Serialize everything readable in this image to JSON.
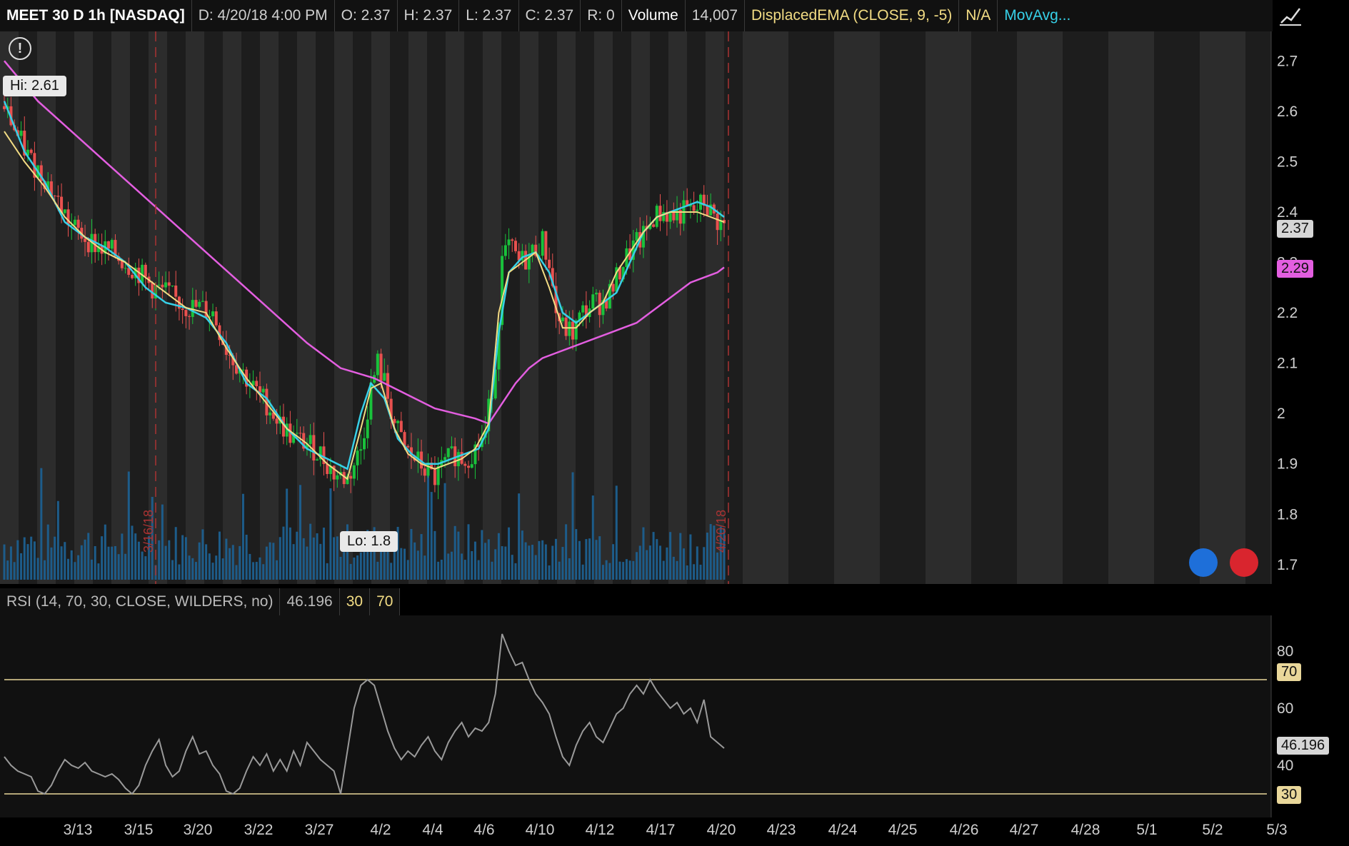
{
  "header": {
    "symbol": "MEET 30 D 1h [NASDAQ]",
    "date": "D:  4/20/18 4:00 PM",
    "open": "O:  2.37",
    "high": "H:  2.37",
    "low": "L:  2.37",
    "close": "C:  2.37",
    "range": "R:  0",
    "volume_label": "Volume",
    "volume_value": "14,007",
    "ema_label": "DisplacedEMA (CLOSE, 9, -5)",
    "ema_value": "N/A",
    "movavg_label": "MovAvg..."
  },
  "price_panel": {
    "hi_label": "Hi: 2.61",
    "lo_label": "Lo: 1.8",
    "last_price": "2.37",
    "movavg_price": "2.29",
    "date_marker_1": "3/16/18",
    "date_marker_2": "4/20/18",
    "yticks": [
      "2.7",
      "2.6",
      "2.5",
      "2.4",
      "2.3",
      "2.2",
      "2.1",
      "2",
      "1.9",
      "1.8",
      "1.7"
    ]
  },
  "rsi_panel": {
    "label": "RSI (14, 70, 30, CLOSE, WILDERS, no)",
    "value": "46.196",
    "oversold": "30",
    "overbought": "70",
    "yticks": [
      "80",
      "60",
      "40"
    ]
  },
  "xaxis": {
    "labels": [
      "3/13",
      "3/15",
      "3/20",
      "3/22",
      "3/27",
      "4/2",
      "4/4",
      "4/6",
      "4/10",
      "4/12",
      "4/17",
      "4/20",
      "4/23",
      "4/24",
      "4/25",
      "4/26",
      "4/27",
      "4/28",
      "5/1",
      "5/2",
      "5/3"
    ]
  },
  "colors": {
    "up": "#19c23b",
    "down": "#e8514f",
    "ema_fast": "#f2dc84",
    "ema_mid": "#37d0e8",
    "movavg": "#e35ee0",
    "rsi": "#9a9a9a",
    "volume": "#1d5c8a"
  },
  "chart_data": {
    "type": "candlestick",
    "ylim": [
      1.67,
      2.75
    ],
    "rsi_ylim": [
      25,
      90
    ],
    "price_path": [
      [
        0,
        2.61
      ],
      [
        4,
        2.55
      ],
      [
        8,
        2.5
      ],
      [
        12,
        2.47
      ],
      [
        16,
        2.42
      ],
      [
        20,
        2.37
      ],
      [
        24,
        2.35
      ],
      [
        28,
        2.33
      ],
      [
        32,
        2.32
      ],
      [
        36,
        2.3
      ],
      [
        40,
        2.28
      ],
      [
        44,
        2.25
      ],
      [
        48,
        2.24
      ],
      [
        52,
        2.22
      ],
      [
        55,
        2.21
      ],
      [
        58,
        2.21
      ],
      [
        62,
        2.2
      ],
      [
        66,
        2.13
      ],
      [
        70,
        2.09
      ],
      [
        74,
        2.05
      ],
      [
        78,
        2.02
      ],
      [
        82,
        1.98
      ],
      [
        86,
        1.95
      ],
      [
        90,
        1.94
      ],
      [
        94,
        1.92
      ],
      [
        98,
        1.88
      ],
      [
        102,
        1.87
      ],
      [
        106,
        1.93
      ],
      [
        109,
        2.05
      ],
      [
        111,
        2.1
      ],
      [
        113,
        2.06
      ],
      [
        116,
        1.98
      ],
      [
        119,
        1.93
      ],
      [
        122,
        1.91
      ],
      [
        125,
        1.89
      ],
      [
        128,
        1.87
      ],
      [
        131,
        1.9
      ],
      [
        134,
        1.92
      ],
      [
        137,
        1.91
      ],
      [
        140,
        1.93
      ],
      [
        143,
        1.96
      ],
      [
        146,
        2.1
      ],
      [
        148,
        2.3
      ],
      [
        150,
        2.33
      ],
      [
        153,
        2.3
      ],
      [
        156,
        2.31
      ],
      [
        158,
        2.33
      ],
      [
        160,
        2.34
      ],
      [
        162,
        2.3
      ],
      [
        164,
        2.2
      ],
      [
        166,
        2.17
      ],
      [
        169,
        2.16
      ],
      [
        172,
        2.2
      ],
      [
        175,
        2.22
      ],
      [
        178,
        2.22
      ],
      [
        181,
        2.25
      ],
      [
        184,
        2.3
      ],
      [
        187,
        2.33
      ],
      [
        190,
        2.35
      ],
      [
        193,
        2.39
      ],
      [
        196,
        2.4
      ],
      [
        199,
        2.39
      ],
      [
        202,
        2.4
      ],
      [
        205,
        2.4
      ],
      [
        208,
        2.42
      ],
      [
        211,
        2.39
      ],
      [
        214,
        2.37
      ]
    ],
    "ema_fast_path": [
      [
        0,
        2.56
      ],
      [
        6,
        2.5
      ],
      [
        12,
        2.45
      ],
      [
        18,
        2.39
      ],
      [
        24,
        2.35
      ],
      [
        30,
        2.32
      ],
      [
        36,
        2.3
      ],
      [
        42,
        2.27
      ],
      [
        48,
        2.24
      ],
      [
        54,
        2.21
      ],
      [
        60,
        2.2
      ],
      [
        66,
        2.13
      ],
      [
        72,
        2.07
      ],
      [
        78,
        2.02
      ],
      [
        84,
        1.97
      ],
      [
        90,
        1.94
      ],
      [
        96,
        1.9
      ],
      [
        102,
        1.87
      ],
      [
        106,
        1.97
      ],
      [
        109,
        2.05
      ],
      [
        112,
        2.06
      ],
      [
        116,
        1.97
      ],
      [
        120,
        1.92
      ],
      [
        124,
        1.9
      ],
      [
        128,
        1.89
      ],
      [
        132,
        1.9
      ],
      [
        136,
        1.91
      ],
      [
        140,
        1.93
      ],
      [
        144,
        1.98
      ],
      [
        147,
        2.2
      ],
      [
        150,
        2.28
      ],
      [
        154,
        2.3
      ],
      [
        158,
        2.32
      ],
      [
        162,
        2.25
      ],
      [
        166,
        2.17
      ],
      [
        170,
        2.17
      ],
      [
        174,
        2.2
      ],
      [
        178,
        2.22
      ],
      [
        182,
        2.28
      ],
      [
        186,
        2.32
      ],
      [
        190,
        2.36
      ],
      [
        194,
        2.39
      ],
      [
        198,
        2.4
      ],
      [
        202,
        2.4
      ],
      [
        206,
        2.4
      ],
      [
        210,
        2.39
      ],
      [
        214,
        2.38
      ]
    ],
    "ema_mid_path": [
      [
        0,
        2.62
      ],
      [
        6,
        2.52
      ],
      [
        12,
        2.46
      ],
      [
        18,
        2.38
      ],
      [
        24,
        2.35
      ],
      [
        30,
        2.33
      ],
      [
        36,
        2.3
      ],
      [
        42,
        2.25
      ],
      [
        48,
        2.22
      ],
      [
        54,
        2.21
      ],
      [
        60,
        2.19
      ],
      [
        66,
        2.14
      ],
      [
        72,
        2.06
      ],
      [
        78,
        2.03
      ],
      [
        84,
        1.97
      ],
      [
        90,
        1.93
      ],
      [
        96,
        1.91
      ],
      [
        102,
        1.89
      ],
      [
        106,
        2.0
      ],
      [
        109,
        2.06
      ],
      [
        113,
        2.03
      ],
      [
        117,
        1.95
      ],
      [
        121,
        1.92
      ],
      [
        125,
        1.9
      ],
      [
        129,
        1.9
      ],
      [
        133,
        1.91
      ],
      [
        137,
        1.92
      ],
      [
        141,
        1.93
      ],
      [
        144,
        1.97
      ],
      [
        147,
        2.16
      ],
      [
        150,
        2.28
      ],
      [
        154,
        2.31
      ],
      [
        158,
        2.32
      ],
      [
        162,
        2.28
      ],
      [
        166,
        2.2
      ],
      [
        170,
        2.18
      ],
      [
        174,
        2.2
      ],
      [
        178,
        2.22
      ],
      [
        182,
        2.24
      ],
      [
        186,
        2.3
      ],
      [
        190,
        2.36
      ],
      [
        194,
        2.39
      ],
      [
        198,
        2.4
      ],
      [
        202,
        2.41
      ],
      [
        206,
        2.42
      ],
      [
        210,
        2.41
      ],
      [
        214,
        2.39
      ]
    ],
    "movavg_path": [
      [
        0,
        2.7
      ],
      [
        10,
        2.62
      ],
      [
        20,
        2.56
      ],
      [
        30,
        2.5
      ],
      [
        40,
        2.44
      ],
      [
        50,
        2.38
      ],
      [
        60,
        2.32
      ],
      [
        70,
        2.26
      ],
      [
        80,
        2.2
      ],
      [
        90,
        2.14
      ],
      [
        100,
        2.09
      ],
      [
        105,
        2.08
      ],
      [
        110,
        2.07
      ],
      [
        116,
        2.05
      ],
      [
        122,
        2.03
      ],
      [
        128,
        2.01
      ],
      [
        134,
        2.0
      ],
      [
        140,
        1.99
      ],
      [
        144,
        1.98
      ],
      [
        148,
        2.02
      ],
      [
        152,
        2.06
      ],
      [
        156,
        2.09
      ],
      [
        160,
        2.11
      ],
      [
        164,
        2.12
      ],
      [
        168,
        2.13
      ],
      [
        172,
        2.14
      ],
      [
        176,
        2.15
      ],
      [
        180,
        2.16
      ],
      [
        184,
        2.17
      ],
      [
        188,
        2.18
      ],
      [
        192,
        2.2
      ],
      [
        196,
        2.22
      ],
      [
        200,
        2.24
      ],
      [
        204,
        2.26
      ],
      [
        208,
        2.27
      ],
      [
        212,
        2.28
      ],
      [
        214,
        2.29
      ]
    ],
    "rsi_path": [
      [
        0,
        43
      ],
      [
        2,
        40
      ],
      [
        4,
        38
      ],
      [
        6,
        37
      ],
      [
        8,
        36
      ],
      [
        10,
        31
      ],
      [
        12,
        30
      ],
      [
        14,
        33
      ],
      [
        16,
        38
      ],
      [
        18,
        42
      ],
      [
        20,
        40
      ],
      [
        22,
        39
      ],
      [
        24,
        41
      ],
      [
        26,
        38
      ],
      [
        28,
        37
      ],
      [
        30,
        36
      ],
      [
        32,
        37
      ],
      [
        34,
        35
      ],
      [
        36,
        32
      ],
      [
        38,
        30
      ],
      [
        40,
        33
      ],
      [
        42,
        40
      ],
      [
        44,
        45
      ],
      [
        46,
        49
      ],
      [
        48,
        40
      ],
      [
        50,
        36
      ],
      [
        52,
        38
      ],
      [
        54,
        45
      ],
      [
        56,
        50
      ],
      [
        58,
        44
      ],
      [
        60,
        45
      ],
      [
        62,
        40
      ],
      [
        64,
        37
      ],
      [
        66,
        31
      ],
      [
        68,
        30
      ],
      [
        70,
        32
      ],
      [
        72,
        38
      ],
      [
        74,
        43
      ],
      [
        76,
        40
      ],
      [
        78,
        44
      ],
      [
        80,
        38
      ],
      [
        82,
        42
      ],
      [
        84,
        38
      ],
      [
        86,
        45
      ],
      [
        88,
        40
      ],
      [
        90,
        48
      ],
      [
        92,
        45
      ],
      [
        94,
        42
      ],
      [
        96,
        40
      ],
      [
        98,
        38
      ],
      [
        100,
        30
      ],
      [
        102,
        45
      ],
      [
        104,
        60
      ],
      [
        106,
        68
      ],
      [
        108,
        70
      ],
      [
        110,
        68
      ],
      [
        112,
        60
      ],
      [
        114,
        52
      ],
      [
        116,
        46
      ],
      [
        118,
        42
      ],
      [
        120,
        45
      ],
      [
        122,
        43
      ],
      [
        124,
        47
      ],
      [
        126,
        50
      ],
      [
        128,
        45
      ],
      [
        130,
        42
      ],
      [
        132,
        48
      ],
      [
        134,
        52
      ],
      [
        136,
        55
      ],
      [
        138,
        50
      ],
      [
        140,
        53
      ],
      [
        142,
        52
      ],
      [
        144,
        55
      ],
      [
        146,
        65
      ],
      [
        148,
        86
      ],
      [
        150,
        80
      ],
      [
        152,
        75
      ],
      [
        154,
        76
      ],
      [
        156,
        70
      ],
      [
        158,
        65
      ],
      [
        160,
        62
      ],
      [
        162,
        58
      ],
      [
        164,
        50
      ],
      [
        166,
        43
      ],
      [
        168,
        40
      ],
      [
        170,
        47
      ],
      [
        172,
        52
      ],
      [
        174,
        55
      ],
      [
        176,
        50
      ],
      [
        178,
        48
      ],
      [
        180,
        53
      ],
      [
        182,
        58
      ],
      [
        184,
        60
      ],
      [
        186,
        65
      ],
      [
        188,
        68
      ],
      [
        190,
        65
      ],
      [
        192,
        70
      ],
      [
        194,
        66
      ],
      [
        196,
        63
      ],
      [
        198,
        60
      ],
      [
        200,
        62
      ],
      [
        202,
        58
      ],
      [
        204,
        60
      ],
      [
        206,
        55
      ],
      [
        208,
        63
      ],
      [
        210,
        50
      ],
      [
        212,
        48
      ],
      [
        214,
        46
      ]
    ]
  }
}
